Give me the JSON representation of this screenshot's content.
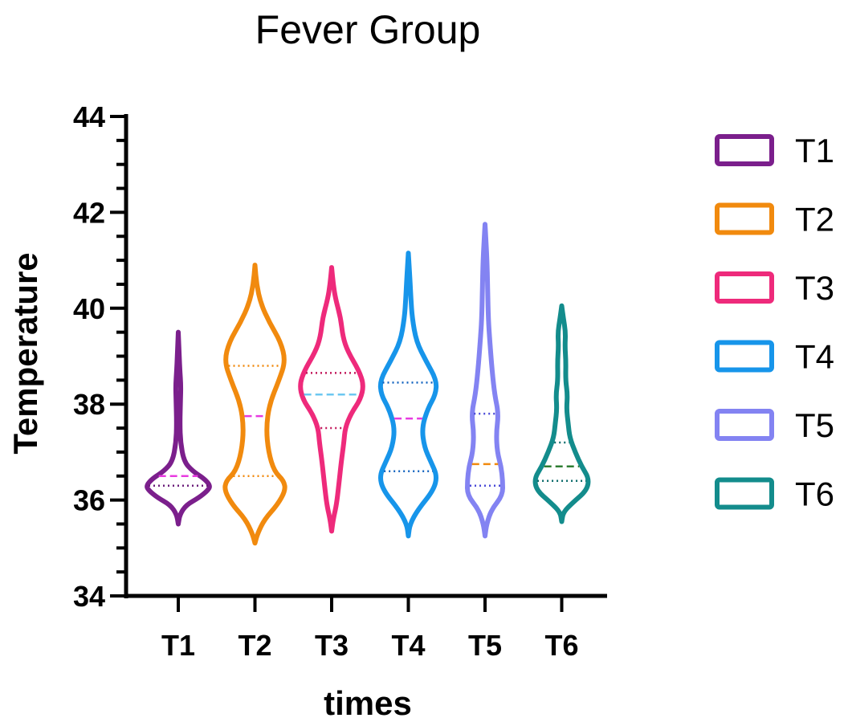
{
  "chart_data": {
    "type": "violin",
    "title": "Fever Group",
    "xlabel": "times",
    "ylabel": "Temperature",
    "ylim": [
      34,
      44
    ],
    "yticks": [
      "34",
      "36",
      "38",
      "40",
      "42",
      "44"
    ],
    "categories": [
      "T1",
      "T2",
      "T3",
      "T4",
      "T5",
      "T6"
    ],
    "legend_position": "right",
    "grid": false,
    "series": [
      {
        "name": "T1",
        "color": "#7B1F8C",
        "median_color": "#E83BE0",
        "quartile_color": "#6B1D7A",
        "min": 35.5,
        "max": 39.5,
        "median": 36.5,
        "q1": 36.3,
        "q3": 36.5,
        "profile": [
          [
            35.5,
            0
          ],
          [
            35.7,
            0.05
          ],
          [
            35.9,
            0.25
          ],
          [
            36.05,
            0.65
          ],
          [
            36.2,
            0.92
          ],
          [
            36.3,
            1.0
          ],
          [
            36.45,
            0.8
          ],
          [
            36.6,
            0.45
          ],
          [
            36.8,
            0.18
          ],
          [
            37.2,
            0.07
          ],
          [
            37.6,
            0.05
          ],
          [
            38.1,
            0.07
          ],
          [
            38.4,
            0.08
          ],
          [
            38.7,
            0.05
          ],
          [
            39.0,
            0.03
          ],
          [
            39.5,
            0
          ]
        ]
      },
      {
        "name": "T2",
        "color": "#F18A0E",
        "median_color": "#E83BE0",
        "quartile_color": "#F18A0E",
        "min": 35.1,
        "max": 40.9,
        "median": 37.75,
        "q1": 36.5,
        "q3": 38.8,
        "profile": [
          [
            35.1,
            0
          ],
          [
            35.3,
            0.08
          ],
          [
            35.6,
            0.3
          ],
          [
            35.9,
            0.7
          ],
          [
            36.2,
            0.95
          ],
          [
            36.4,
            0.9
          ],
          [
            36.6,
            0.6
          ],
          [
            37.0,
            0.42
          ],
          [
            37.5,
            0.35
          ],
          [
            38.0,
            0.45
          ],
          [
            38.5,
            0.75
          ],
          [
            38.9,
            0.95
          ],
          [
            39.3,
            0.8
          ],
          [
            39.7,
            0.45
          ],
          [
            40.1,
            0.18
          ],
          [
            40.5,
            0.05
          ],
          [
            40.9,
            0
          ]
        ]
      },
      {
        "name": "T3",
        "color": "#EE2A7B",
        "median_color": "#6CC7F0",
        "quartile_color": "#C2185B",
        "min": 35.35,
        "max": 40.85,
        "median": 38.2,
        "q1": 37.5,
        "q3": 38.65,
        "profile": [
          [
            35.35,
            0
          ],
          [
            35.6,
            0.05
          ],
          [
            35.9,
            0.15
          ],
          [
            36.3,
            0.22
          ],
          [
            36.8,
            0.3
          ],
          [
            37.2,
            0.38
          ],
          [
            37.5,
            0.42
          ],
          [
            37.8,
            0.6
          ],
          [
            38.1,
            0.9
          ],
          [
            38.4,
            1.0
          ],
          [
            38.7,
            0.85
          ],
          [
            39.1,
            0.5
          ],
          [
            39.4,
            0.35
          ],
          [
            39.8,
            0.28
          ],
          [
            40.2,
            0.12
          ],
          [
            40.5,
            0.05
          ],
          [
            40.85,
            0
          ]
        ]
      },
      {
        "name": "T4",
        "color": "#1795EA",
        "median_color": "#E83BE0",
        "quartile_color": "#1565C0",
        "min": 35.25,
        "max": 41.15,
        "median": 37.7,
        "q1": 36.6,
        "q3": 38.45,
        "profile": [
          [
            35.25,
            0
          ],
          [
            35.5,
            0.05
          ],
          [
            35.8,
            0.3
          ],
          [
            36.2,
            0.78
          ],
          [
            36.5,
            0.9
          ],
          [
            36.8,
            0.7
          ],
          [
            37.1,
            0.5
          ],
          [
            37.5,
            0.42
          ],
          [
            37.9,
            0.6
          ],
          [
            38.2,
            0.85
          ],
          [
            38.5,
            0.88
          ],
          [
            38.9,
            0.55
          ],
          [
            39.3,
            0.25
          ],
          [
            39.8,
            0.12
          ],
          [
            40.2,
            0.08
          ],
          [
            40.6,
            0.05
          ],
          [
            41.15,
            0
          ]
        ]
      },
      {
        "name": "T5",
        "color": "#8383F2",
        "median_color": "#F18A0E",
        "quartile_color": "#4A4AD8",
        "min": 35.25,
        "max": 41.75,
        "median": 36.75,
        "q1": 36.3,
        "q3": 37.8,
        "profile": [
          [
            35.25,
            0
          ],
          [
            35.5,
            0.05
          ],
          [
            35.8,
            0.2
          ],
          [
            36.1,
            0.55
          ],
          [
            36.4,
            0.55
          ],
          [
            36.7,
            0.5
          ],
          [
            37.0,
            0.38
          ],
          [
            37.4,
            0.35
          ],
          [
            37.8,
            0.42
          ],
          [
            38.2,
            0.3
          ],
          [
            38.7,
            0.22
          ],
          [
            39.3,
            0.15
          ],
          [
            39.8,
            0.1
          ],
          [
            40.5,
            0.08
          ],
          [
            41.0,
            0.06
          ],
          [
            41.4,
            0.03
          ],
          [
            41.75,
            0
          ]
        ]
      },
      {
        "name": "T6",
        "color": "#138C8C",
        "median_color": "#2E7D32",
        "quartile_color": "#0A6A6A",
        "min": 35.55,
        "max": 40.05,
        "median": 36.7,
        "q1": 36.4,
        "q3": 37.2,
        "profile": [
          [
            35.55,
            0
          ],
          [
            35.75,
            0.05
          ],
          [
            35.95,
            0.35
          ],
          [
            36.2,
            0.78
          ],
          [
            36.45,
            0.85
          ],
          [
            36.7,
            0.62
          ],
          [
            37.0,
            0.42
          ],
          [
            37.3,
            0.25
          ],
          [
            37.6,
            0.2
          ],
          [
            37.9,
            0.15
          ],
          [
            38.2,
            0.18
          ],
          [
            38.5,
            0.12
          ],
          [
            38.9,
            0.13
          ],
          [
            39.2,
            0.1
          ],
          [
            39.5,
            0.12
          ],
          [
            39.8,
            0.05
          ],
          [
            40.05,
            0
          ]
        ]
      }
    ]
  }
}
